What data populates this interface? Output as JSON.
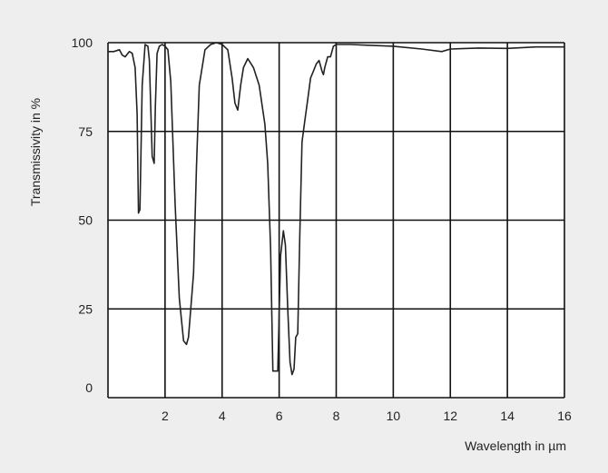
{
  "chart_data": {
    "type": "line",
    "title": "",
    "xlabel": "Wavelength in µm",
    "ylabel": "Transmissivity in %",
    "xlim": [
      0,
      16
    ],
    "ylim": [
      0,
      100
    ],
    "x_ticks": [
      2,
      4,
      6,
      8,
      10,
      12,
      14,
      16
    ],
    "y_ticks": [
      0,
      25,
      50,
      75,
      100
    ],
    "grid": true,
    "colors": {
      "background": "#eeeeee",
      "plot_area": "#ffffff",
      "line": "#222222",
      "grid": "#111111"
    },
    "series": [
      {
        "x": [
          0.0,
          0.2,
          0.4,
          0.5,
          0.6,
          0.75,
          0.85,
          0.95,
          1.02,
          1.07,
          1.12,
          1.2,
          1.3,
          1.4,
          1.45,
          1.55,
          1.62,
          1.66,
          1.72,
          1.8,
          1.9,
          2.0,
          2.1,
          2.2,
          2.35,
          2.5,
          2.65,
          2.75,
          2.82,
          2.9,
          3.0,
          3.1,
          3.2,
          3.4,
          3.6,
          3.8,
          4.0,
          4.2,
          4.35,
          4.45,
          4.55,
          4.65,
          4.75,
          4.9,
          5.1,
          5.3,
          5.5,
          5.6,
          5.7,
          5.78,
          5.85,
          5.95,
          6.05,
          6.15,
          6.22,
          6.3,
          6.38,
          6.45,
          6.52,
          6.58,
          6.65,
          6.72,
          6.8,
          6.9,
          7.0,
          7.1,
          7.2,
          7.3,
          7.4,
          7.5,
          7.55,
          7.6,
          7.7,
          7.8,
          7.9,
          8.0,
          8.5,
          9.0,
          10.0,
          11.0,
          11.7,
          12.0,
          13.0,
          14.0,
          15.0,
          16.0
        ],
        "y": [
          97.5,
          97.5,
          98,
          96.5,
          96,
          97.5,
          97,
          93,
          80,
          52,
          53,
          88,
          99.5,
          99,
          95,
          68,
          66,
          82,
          97,
          99,
          99.5,
          99,
          98,
          89,
          55,
          28,
          16,
          15,
          17,
          25,
          35,
          65,
          88,
          98,
          99.5,
          100,
          99.5,
          98,
          90,
          83,
          81,
          88,
          93,
          95.5,
          93,
          88,
          77,
          66,
          42,
          7.5,
          7.5,
          7.5,
          40,
          47,
          43,
          25,
          10,
          6.5,
          8,
          17,
          18,
          45,
          72,
          78,
          84,
          90,
          92,
          94,
          95,
          92,
          91,
          93,
          96,
          96,
          99,
          99.5,
          99.5,
          99.3,
          99,
          98.2,
          97.5,
          98.2,
          98.5,
          98.4,
          98.8,
          98.8
        ]
      }
    ]
  }
}
